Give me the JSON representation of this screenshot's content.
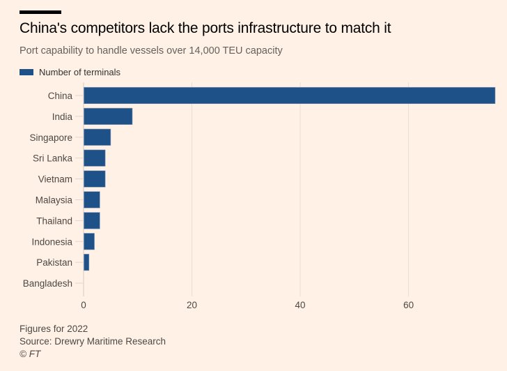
{
  "header": {
    "title": "China's competitors lack the ports infrastructure to match it",
    "subtitle": "Port capability to handle vessels over 14,000 TEU capacity"
  },
  "legend": {
    "label": "Number of terminals",
    "color": "#1F5189"
  },
  "colors": {
    "background": "#FFF1E5",
    "bar": "#1F5189",
    "gridline": "#E9DED4"
  },
  "footer": {
    "note": "Figures for 2022",
    "source": "Source: Drewry Maritime Research",
    "copyright": "© FT"
  },
  "chart_data": {
    "type": "bar",
    "orientation": "horizontal",
    "title": "China's competitors lack the ports infrastructure to match it",
    "subtitle": "Port capability to handle vessels over 14,000 TEU capacity",
    "xlabel": "",
    "ylabel": "",
    "categories": [
      "China",
      "India",
      "Singapore",
      "Sri Lanka",
      "Vietnam",
      "Malaysia",
      "Thailand",
      "Indonesia",
      "Pakistan",
      "Bangladesh"
    ],
    "series": [
      {
        "name": "Number of terminals",
        "values": [
          76,
          9,
          5,
          4,
          4,
          3,
          3,
          2,
          1,
          0
        ]
      }
    ],
    "xlim": [
      0,
      76
    ],
    "xticks": [
      0,
      20,
      40,
      60
    ],
    "grid": true,
    "legend_position": "top-left"
  }
}
